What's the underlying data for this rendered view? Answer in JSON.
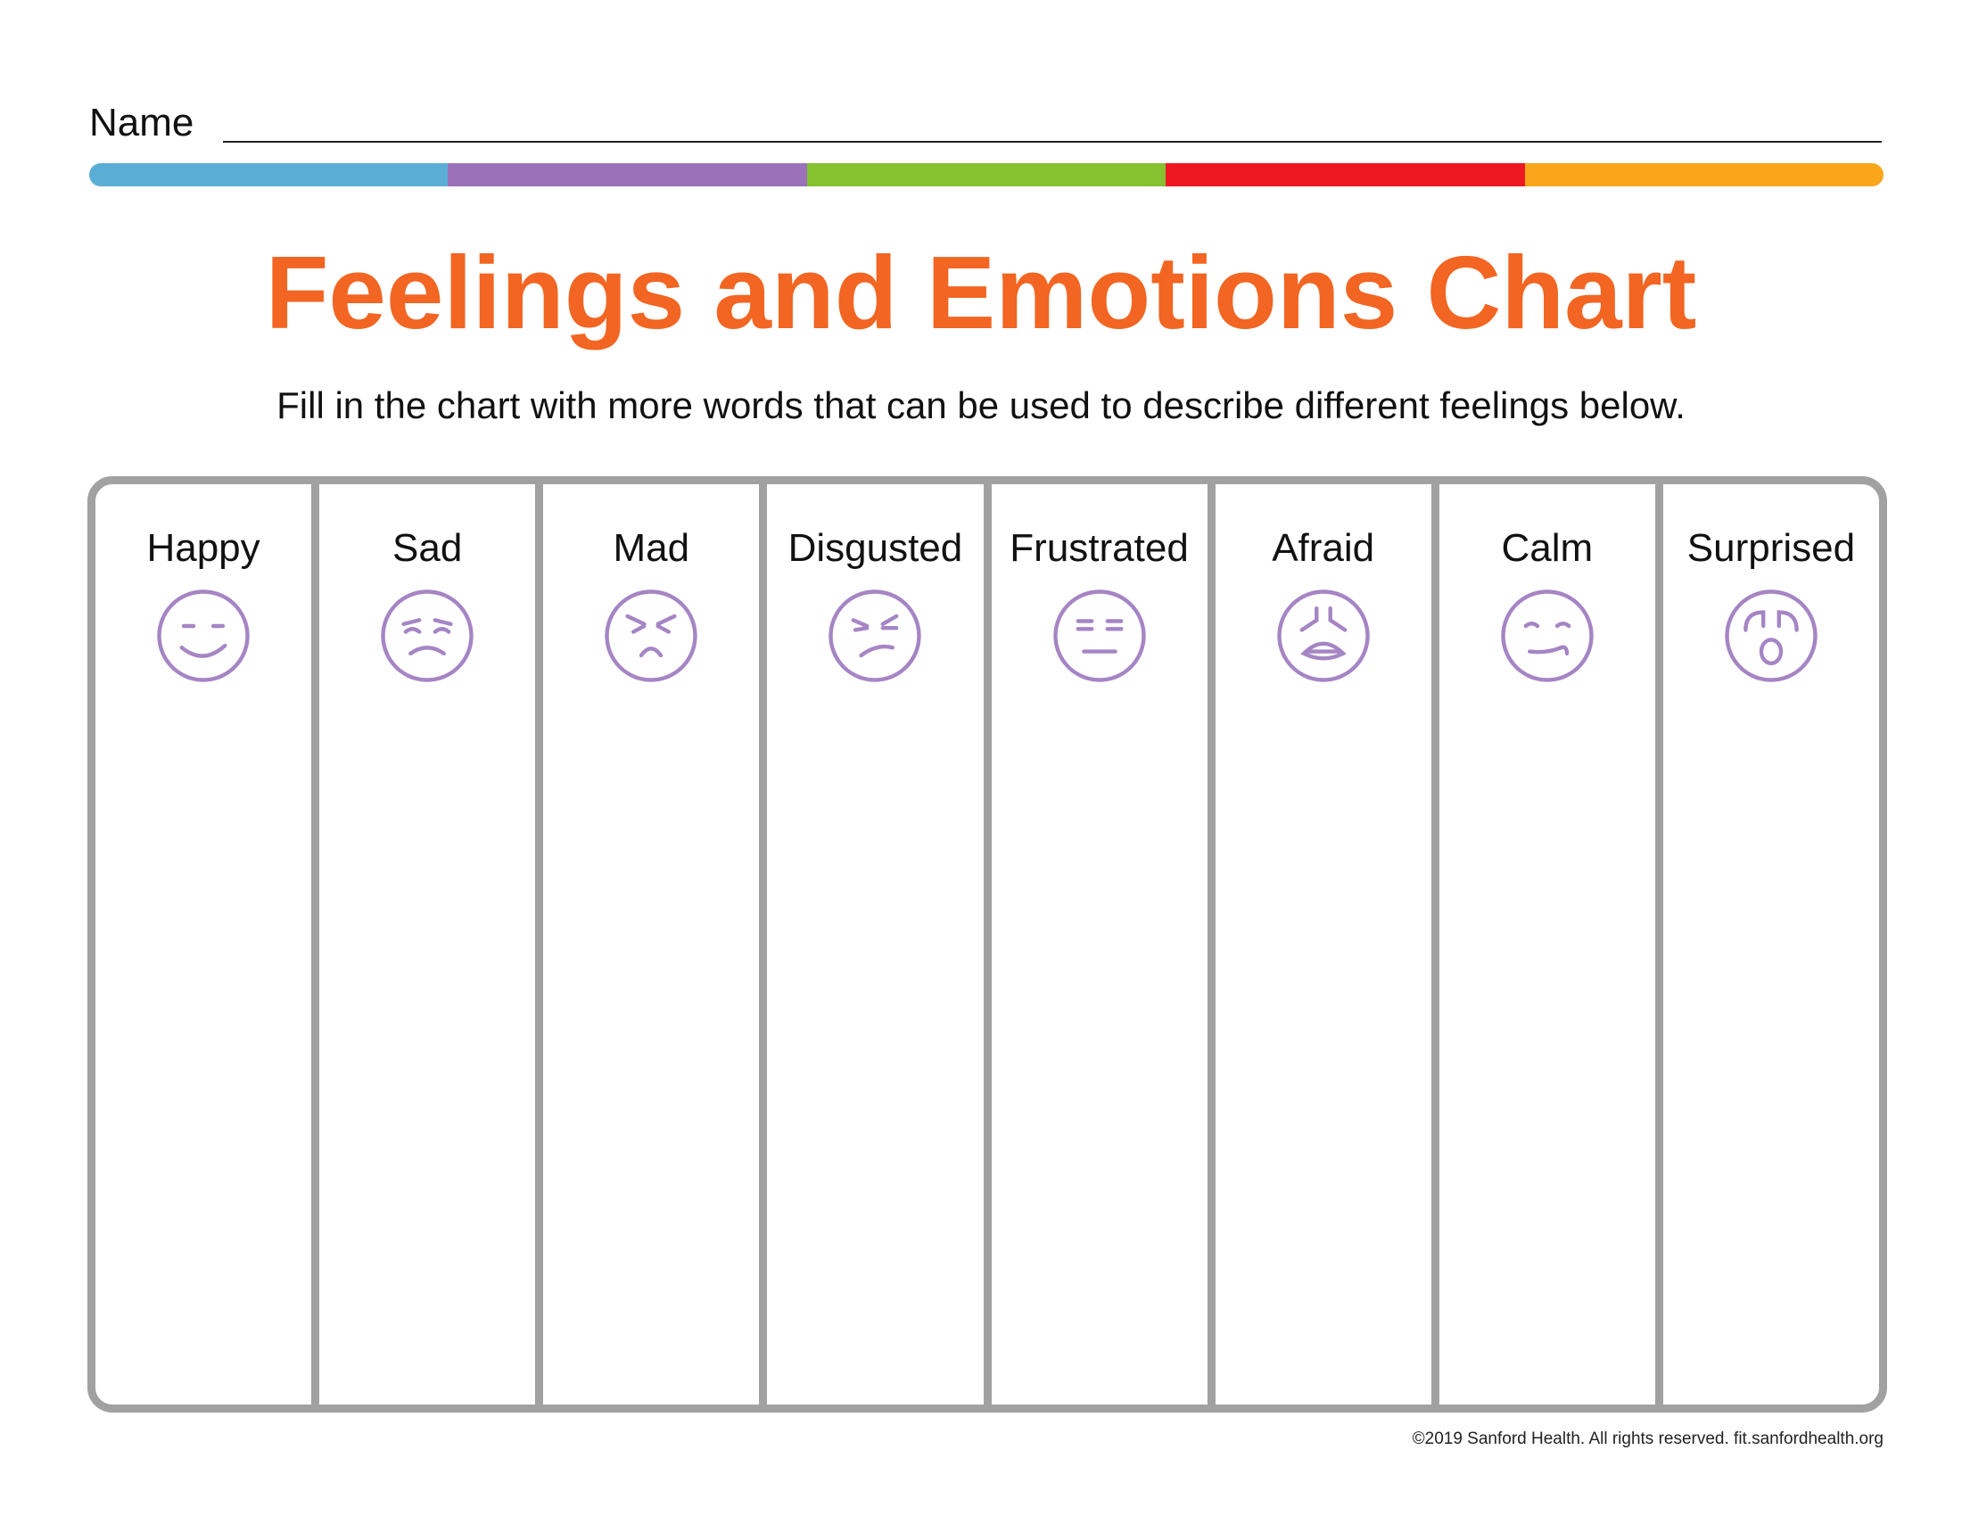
{
  "header": {
    "name_label": "Name"
  },
  "color_bar": [
    "#5aaed6",
    "#9b72b9",
    "#86c12f",
    "#ee1822",
    "#f9a61b"
  ],
  "title": {
    "text": "Feelings and Emotions Chart",
    "color": "#f26522"
  },
  "instruction": "Fill in the chart with more words that can be used to describe different feelings below.",
  "face_color": "#a585c4",
  "columns": [
    {
      "label": "Happy",
      "icon": "happy-face-icon"
    },
    {
      "label": "Sad",
      "icon": "sad-face-icon"
    },
    {
      "label": "Mad",
      "icon": "mad-face-icon"
    },
    {
      "label": "Disgusted",
      "icon": "disgusted-face-icon"
    },
    {
      "label": "Frustrated",
      "icon": "frustrated-face-icon"
    },
    {
      "label": "Afraid",
      "icon": "afraid-face-icon"
    },
    {
      "label": "Calm",
      "icon": "calm-face-icon"
    },
    {
      "label": "Surprised",
      "icon": "surprised-face-icon"
    }
  ],
  "footer": "©2019 Sanford Health. All rights reserved. fit.sanfordhealth.org"
}
